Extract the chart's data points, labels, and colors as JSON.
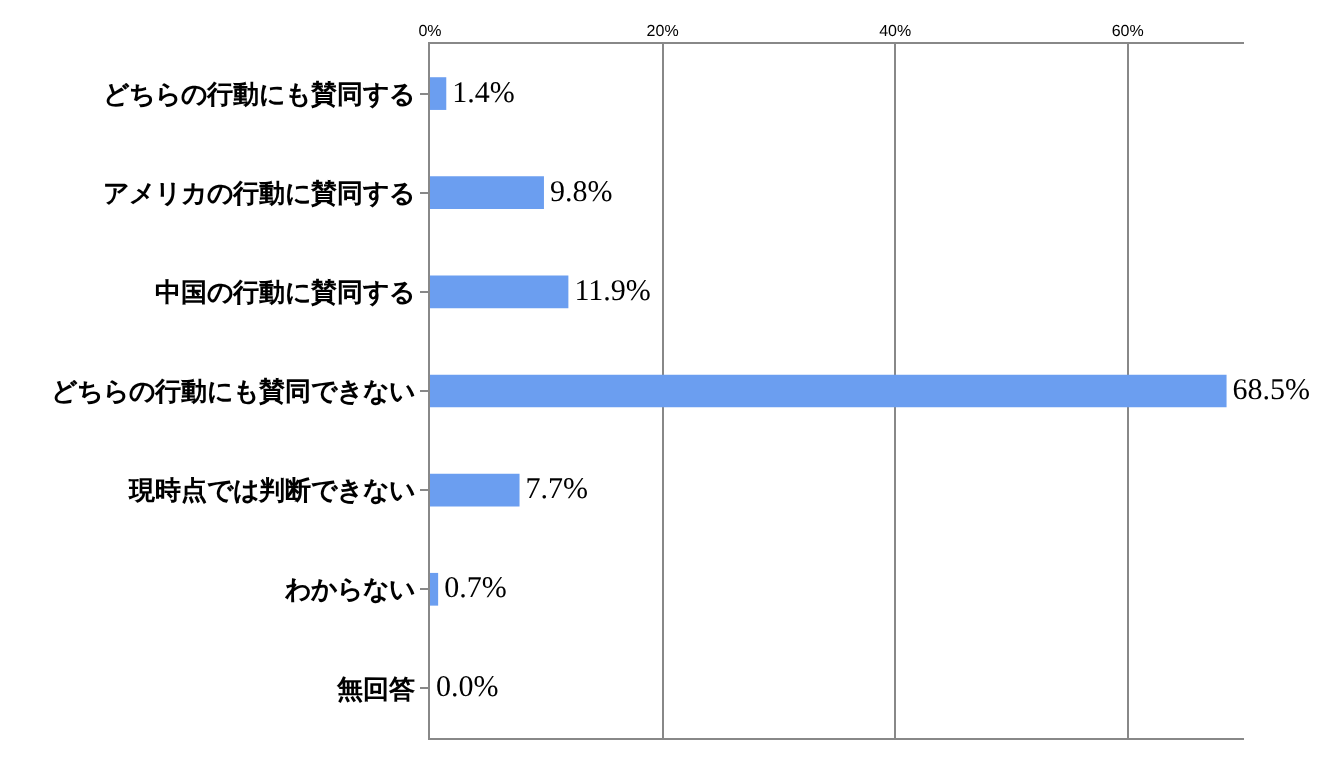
{
  "chart_data": {
    "type": "bar",
    "orientation": "horizontal",
    "categories": [
      "どちらの行動にも賛同する",
      "アメリカの行動に賛同する",
      "中国の行動に賛同する",
      "どちらの行動にも賛同できない",
      "現時点では判断できない",
      "わからない",
      "無回答"
    ],
    "values": [
      1.4,
      9.8,
      11.9,
      68.5,
      7.7,
      0.7,
      0.0
    ],
    "value_labels": [
      "1.4%",
      "9.8%",
      "11.9%",
      "68.5%",
      "7.7%",
      "0.7%",
      "0.0%"
    ],
    "color": "#6b9ef0",
    "xlim": [
      0,
      70
    ],
    "xticks": [
      {
        "value": 0,
        "label": "0%"
      },
      {
        "value": 20,
        "label": "20%"
      },
      {
        "value": 40,
        "label": "40%"
      },
      {
        "value": 60,
        "label": "60%"
      }
    ],
    "grid": "x",
    "legend": false
  }
}
